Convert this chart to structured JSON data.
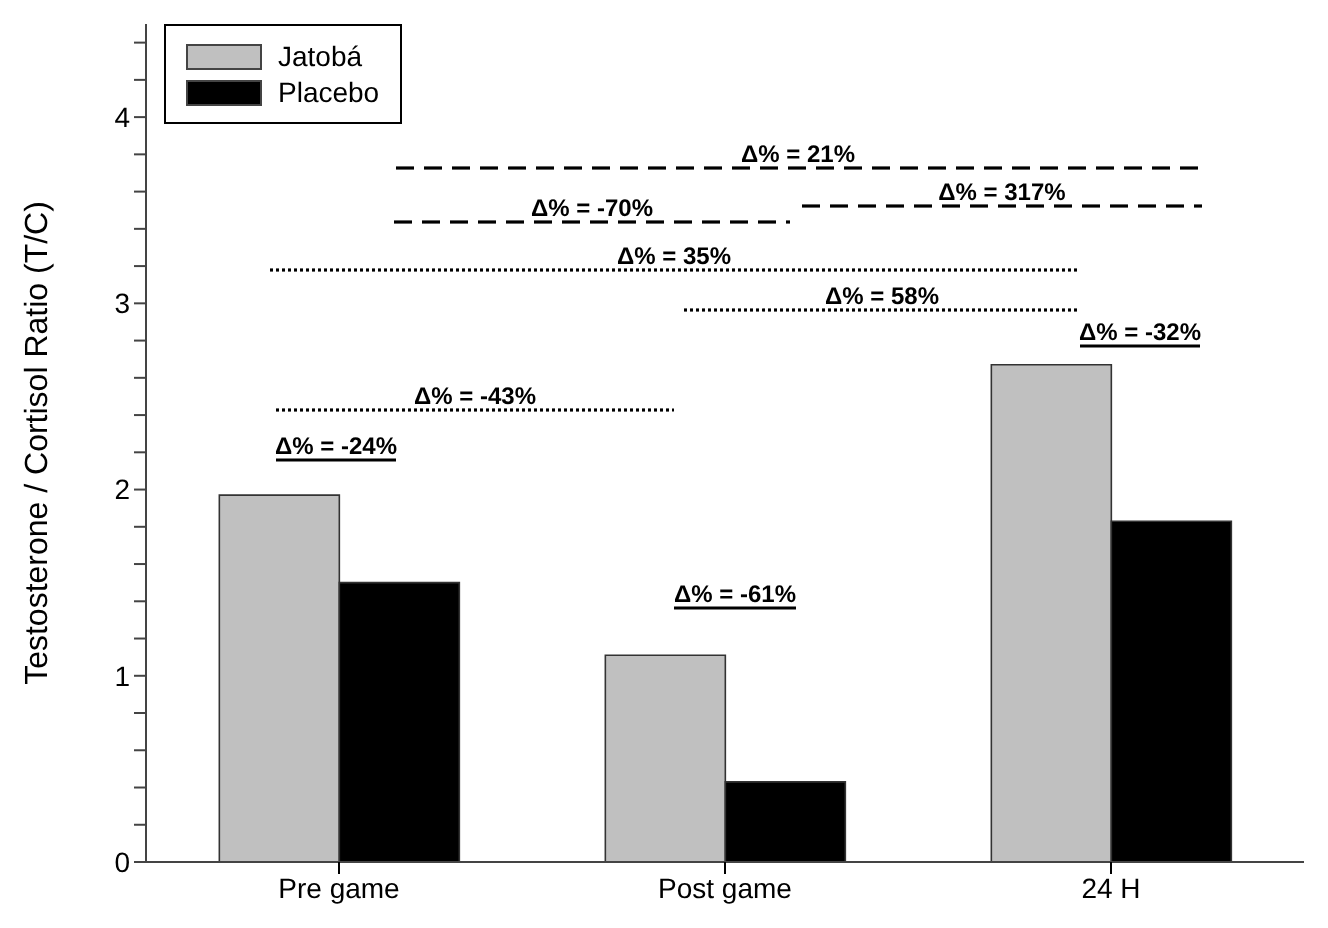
{
  "chart_data": {
    "type": "bar",
    "ylabel": "Testosterone / Cortisol Ratio (T/C)",
    "categories": [
      "Pre game",
      "Post game",
      "24 H"
    ],
    "series": [
      {
        "name": "Jatobá",
        "color": "#c0c0c0",
        "values": [
          1.97,
          1.11,
          2.67
        ]
      },
      {
        "name": "Placebo",
        "color": "#000000",
        "values": [
          1.5,
          0.43,
          1.83
        ]
      }
    ],
    "ylim": [
      0,
      4.5
    ],
    "yticks": [
      0,
      {
        "value": 0.2,
        "label": null
      },
      {
        "value": 0.4,
        "label": null
      },
      {
        "value": 0.6,
        "label": null
      },
      {
        "value": 0.8,
        "label": null
      },
      1,
      {
        "value": 1.2,
        "label": null
      },
      {
        "value": 1.4,
        "label": null
      },
      {
        "value": 1.6,
        "label": null
      },
      {
        "value": 1.8,
        "label": null
      },
      2,
      {
        "value": 2.2,
        "label": null
      },
      {
        "value": 2.4,
        "label": null
      },
      {
        "value": 2.6,
        "label": null
      },
      {
        "value": 2.8,
        "label": null
      },
      3,
      {
        "value": 3.2,
        "label": null
      },
      {
        "value": 3.4,
        "label": null
      },
      {
        "value": 3.6,
        "label": null
      },
      {
        "value": 3.8,
        "label": null
      },
      4,
      {
        "value": 4.2,
        "label": null
      },
      {
        "value": 4.4,
        "label": null
      }
    ],
    "grid": false,
    "legend": "top left",
    "annotations": [
      "Δ% = 21%",
      "Δ% = 317%",
      "Δ% = -70%",
      "Δ% = 35%",
      "Δ% = 58%",
      "Δ% = -32%",
      "Δ% = -43%",
      "Δ% = -24%",
      "Δ% = -61%"
    ]
  }
}
